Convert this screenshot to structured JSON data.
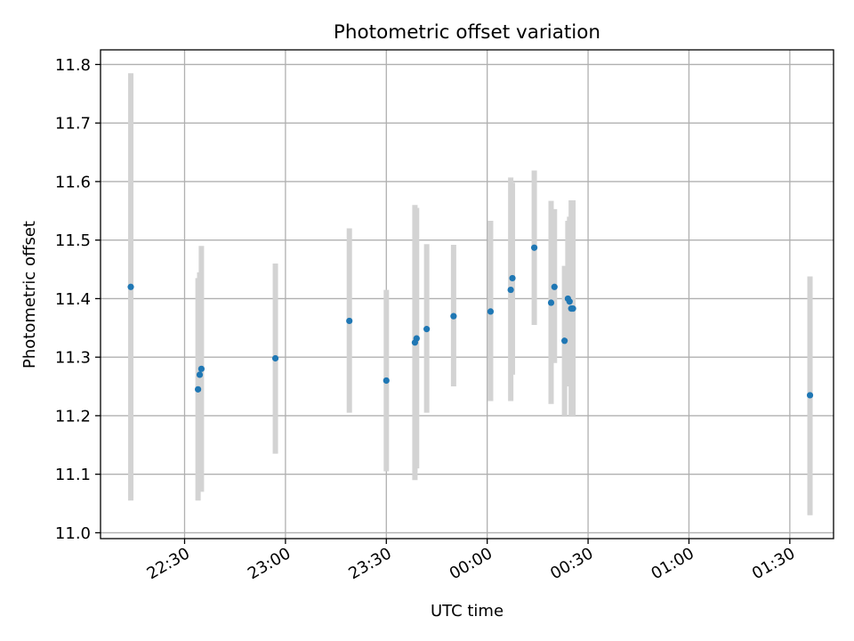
{
  "chart_data": {
    "type": "scatter",
    "title": "Photometric offset variation",
    "xlabel": "UTC time",
    "ylabel": "Photometric offset",
    "x_ticks": [
      "22:30",
      "23:00",
      "23:30",
      "00:00",
      "00:30",
      "01:00",
      "01:30"
    ],
    "y_ticks": [
      "11.0",
      "11.1",
      "11.2",
      "11.3",
      "11.4",
      "11.5",
      "11.6",
      "11.7",
      "11.8"
    ],
    "x_range_utc": [
      "22:05",
      "01:43"
    ],
    "ylim": [
      10.99,
      11.825
    ],
    "grid": true,
    "legend": "none",
    "colors": {
      "points": "#1f77b4",
      "errorbars": "#d3d3d3",
      "grid": "#b0b0b0"
    },
    "series": [
      {
        "points": [
          {
            "t": "22:14",
            "y": 11.42,
            "lo": 11.055,
            "hi": 11.785
          },
          {
            "t": "22:34",
            "y": 11.245,
            "lo": 11.055,
            "hi": 11.435
          },
          {
            "t": "22:34.5",
            "y": 11.27,
            "lo": 11.09,
            "hi": 11.445
          },
          {
            "t": "22:35",
            "y": 11.28,
            "lo": 11.07,
            "hi": 11.49
          },
          {
            "t": "22:57",
            "y": 11.298,
            "lo": 11.135,
            "hi": 11.46
          },
          {
            "t": "23:19",
            "y": 11.362,
            "lo": 11.205,
            "hi": 11.52
          },
          {
            "t": "23:30",
            "y": 11.26,
            "lo": 11.105,
            "hi": 11.415
          },
          {
            "t": "23:38.5",
            "y": 11.325,
            "lo": 11.09,
            "hi": 11.56
          },
          {
            "t": "23:39",
            "y": 11.332,
            "lo": 11.11,
            "hi": 11.555
          },
          {
            "t": "23:42",
            "y": 11.348,
            "lo": 11.205,
            "hi": 11.493
          },
          {
            "t": "23:50",
            "y": 11.37,
            "lo": 11.25,
            "hi": 11.492
          },
          {
            "t": "00:01",
            "y": 11.378,
            "lo": 11.225,
            "hi": 11.533
          },
          {
            "t": "00:07",
            "y": 11.415,
            "lo": 11.225,
            "hi": 11.607
          },
          {
            "t": "00:07.5",
            "y": 11.435,
            "lo": 11.27,
            "hi": 11.598
          },
          {
            "t": "00:14",
            "y": 11.487,
            "lo": 11.355,
            "hi": 11.619
          },
          {
            "t": "00:19",
            "y": 11.393,
            "lo": 11.22,
            "hi": 11.567
          },
          {
            "t": "00:20",
            "y": 11.42,
            "lo": 11.29,
            "hi": 11.553
          },
          {
            "t": "00:23",
            "y": 11.328,
            "lo": 11.2,
            "hi": 11.456
          },
          {
            "t": "00:24",
            "y": 11.4,
            "lo": 11.27,
            "hi": 11.533
          },
          {
            "t": "00:24.5",
            "y": 11.395,
            "lo": 11.25,
            "hi": 11.54
          },
          {
            "t": "00:25",
            "y": 11.383,
            "lo": 11.2,
            "hi": 11.568
          },
          {
            "t": "00:25.5",
            "y": 11.383,
            "lo": 11.2,
            "hi": 11.568
          },
          {
            "t": "01:36",
            "y": 11.235,
            "lo": 11.03,
            "hi": 11.438
          }
        ]
      }
    ]
  }
}
